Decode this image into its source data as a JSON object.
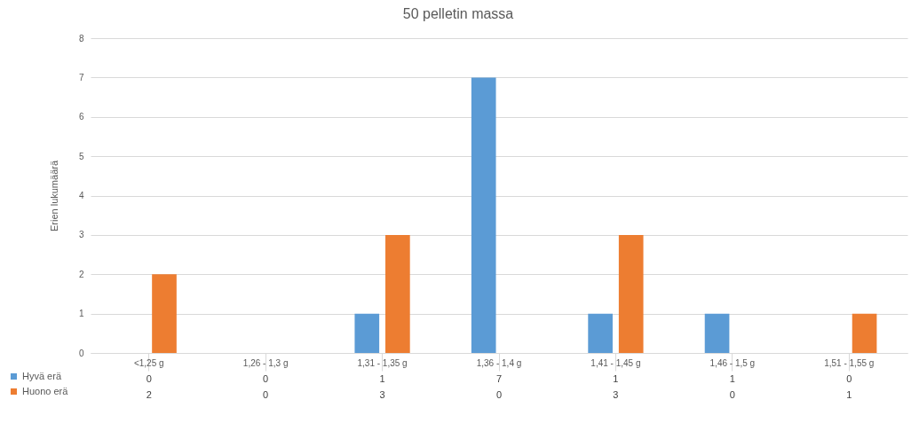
{
  "chart_data": {
    "type": "bar",
    "title": "50 pelletin massa",
    "ylabel": "Erien lukumäärä",
    "categories": [
      "<1,25 g",
      "1,26 - 1,3 g",
      "1,31 - 1,35 g",
      "1,36 - 1,4 g",
      "1,41 - 1,45 g",
      "1,46 - 1,5 g",
      "1,51 - 1,55 g"
    ],
    "series": [
      {
        "name": "Hyvä erä",
        "color": "#5b9bd5",
        "values": [
          0,
          0,
          1,
          7,
          1,
          1,
          0
        ]
      },
      {
        "name": "Huono erä",
        "color": "#ed7d31",
        "values": [
          2,
          0,
          3,
          0,
          3,
          0,
          1
        ]
      }
    ],
    "ylim": [
      0,
      8
    ],
    "yticks": [
      0,
      1,
      2,
      3,
      4,
      5,
      6,
      7,
      8
    ],
    "grid": "y",
    "legend": "bottom left",
    "data_labels": true
  }
}
